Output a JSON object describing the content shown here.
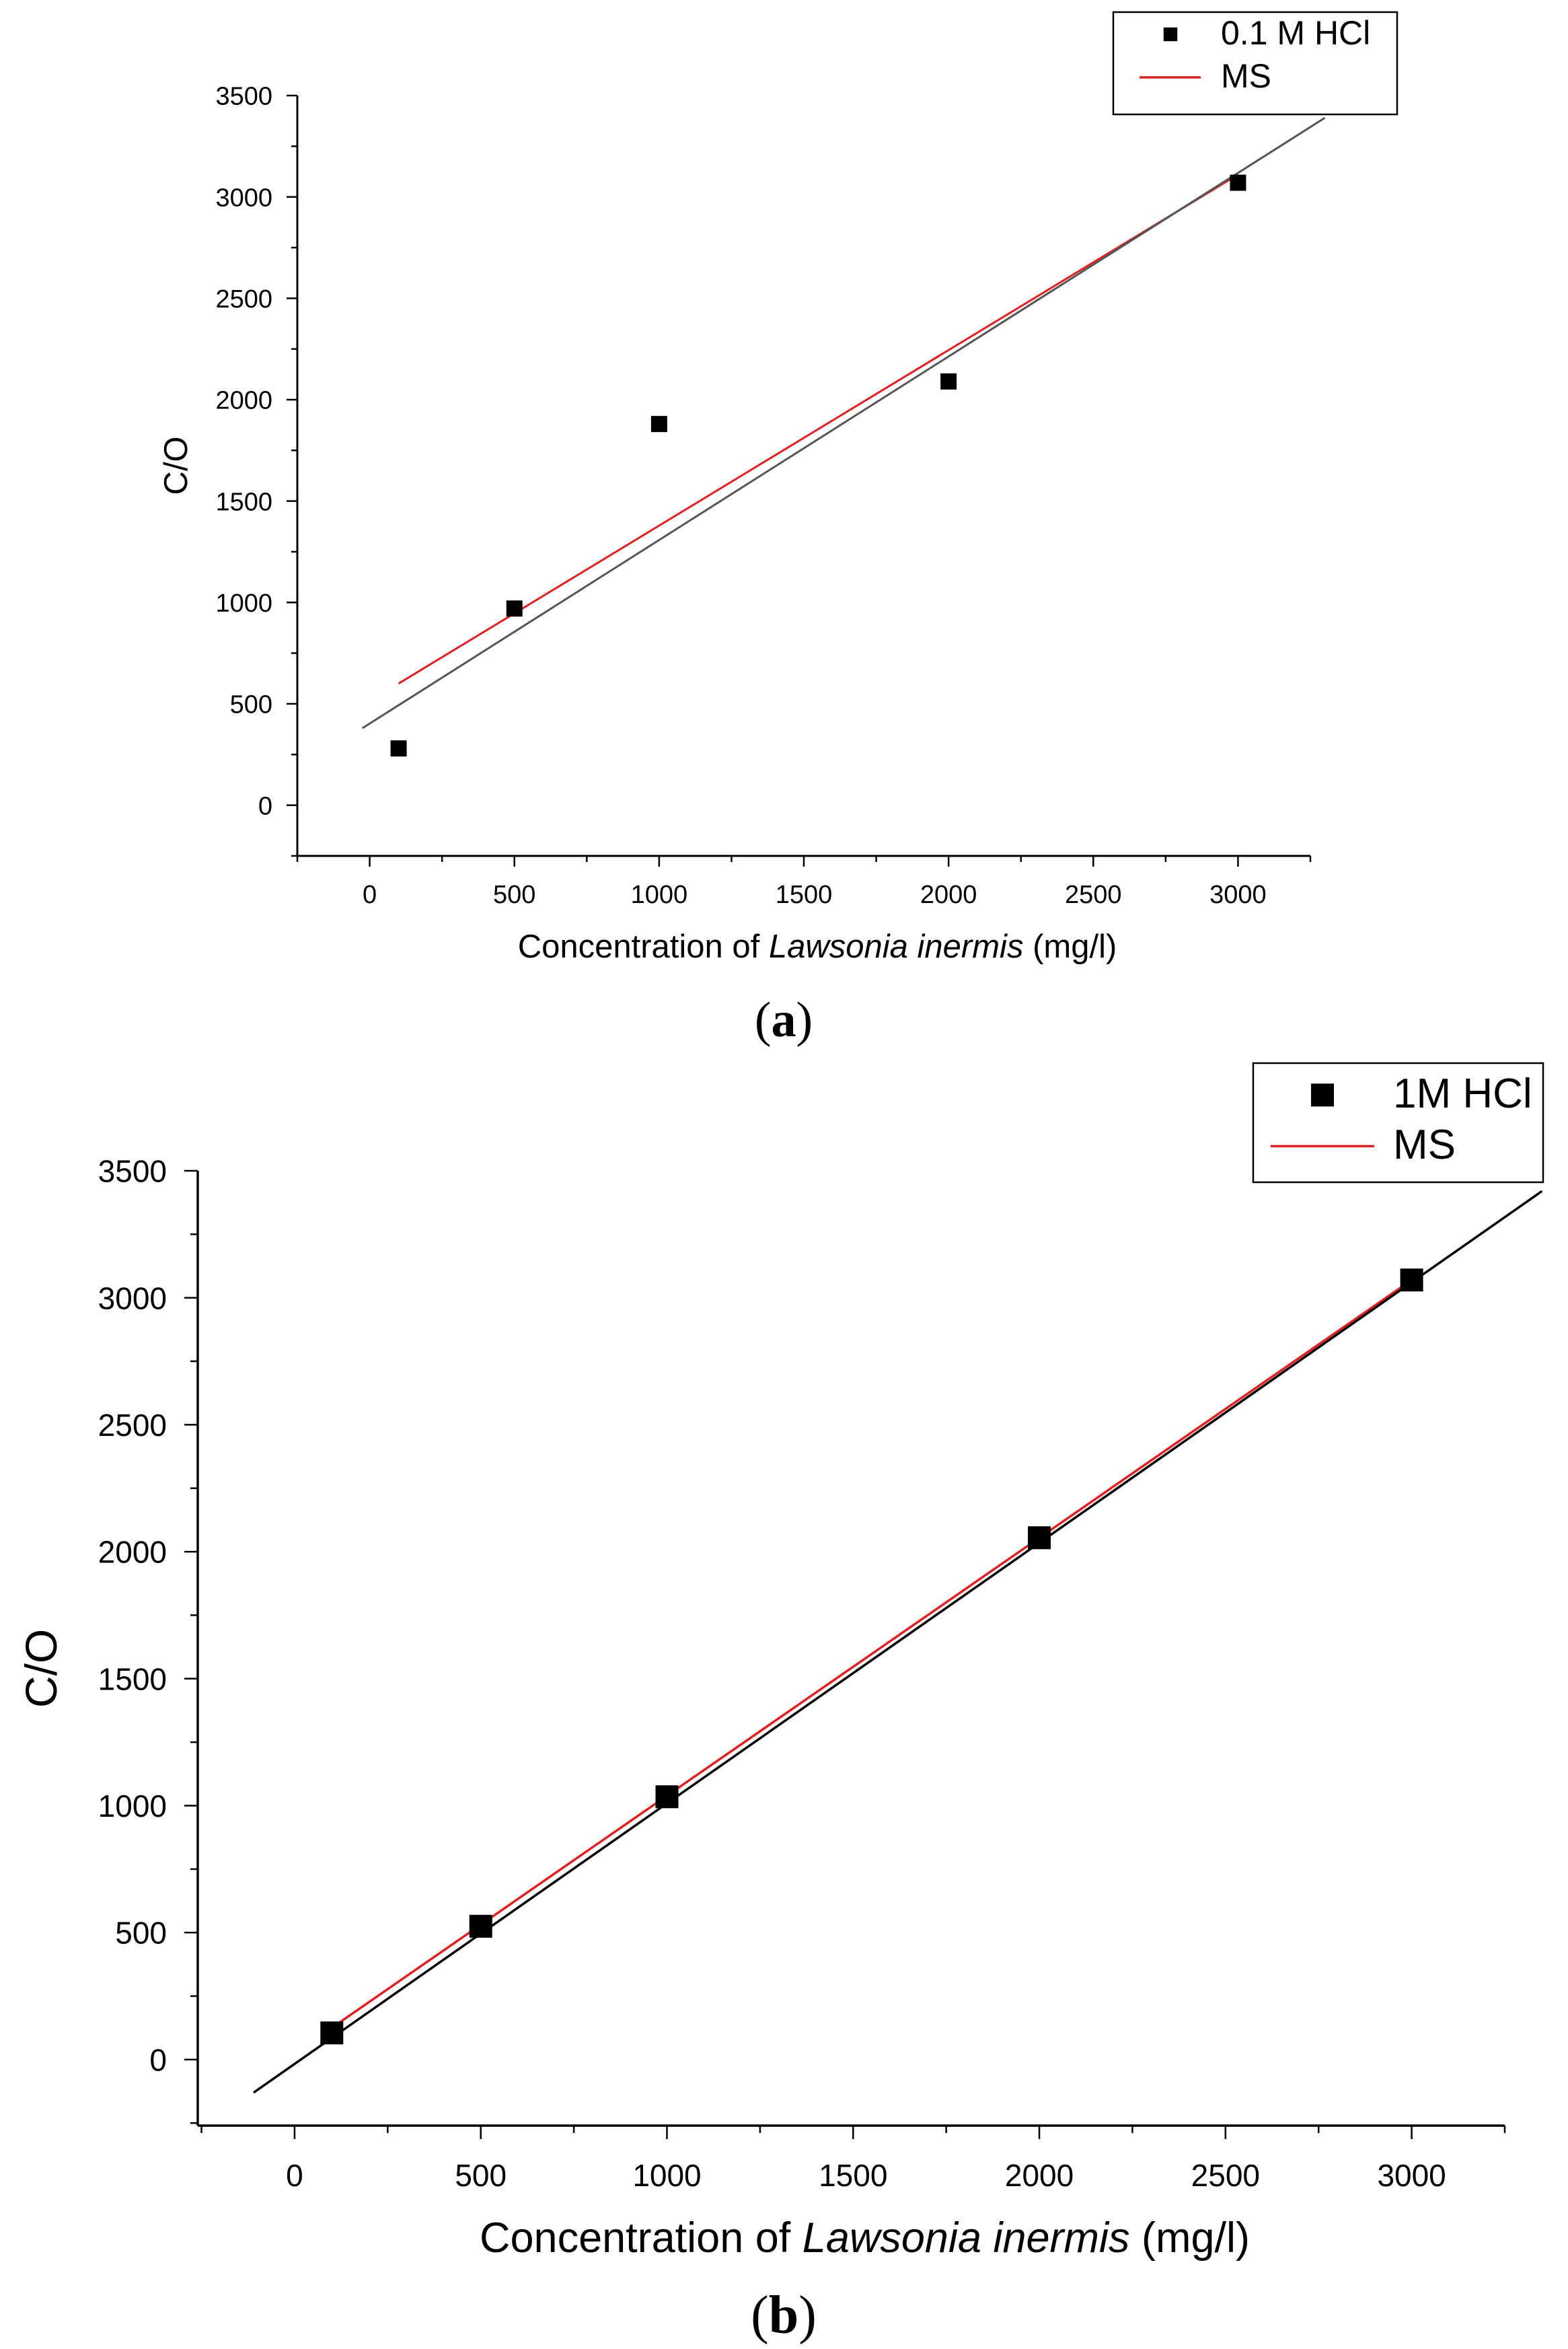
{
  "chart_data": [
    {
      "type": "scatter",
      "panel_label": "a",
      "title": "",
      "xlabel": {
        "prefix": "Concentration of ",
        "italic": "Lawsonia inermis",
        "suffix": " (mg/l)"
      },
      "ylabel": "C/O",
      "xlim": [
        -250,
        3250
      ],
      "ylim": [
        -250,
        3500
      ],
      "xticks": [
        0,
        500,
        1000,
        1500,
        2000,
        2500,
        3000
      ],
      "yticks": [
        0,
        500,
        1000,
        1500,
        2000,
        2500,
        3000,
        3500
      ],
      "legend": [
        "0.1 M HCl",
        "MS"
      ],
      "legend_position": "top-right",
      "series": [
        {
          "name": "0.1 M HCl",
          "kind": "points",
          "color": "#000000",
          "x": [
            100,
            500,
            1000,
            2000,
            3000
          ],
          "y": [
            280,
            970,
            1880,
            2090,
            3070
          ]
        },
        {
          "name": "MS",
          "kind": "line",
          "color": "#e02020",
          "x": [
            100,
            3000
          ],
          "y": [
            600,
            3110
          ]
        },
        {
          "name": "linear fit",
          "kind": "line",
          "color": "#555555",
          "x": [
            -25,
            3300
          ],
          "y": [
            380,
            3390
          ]
        }
      ]
    },
    {
      "type": "scatter",
      "panel_label": "b",
      "title": "",
      "xlabel": {
        "prefix": "Concentration of ",
        "italic": "Lawsonia inermis",
        "suffix": " (mg/l)"
      },
      "ylabel": "C/O",
      "xlim": [
        -260,
        3250
      ],
      "ylim": [
        -260,
        3500
      ],
      "xticks": [
        0,
        500,
        1000,
        1500,
        2000,
        2500,
        3000
      ],
      "yticks": [
        0,
        500,
        1000,
        1500,
        2000,
        2500,
        3000,
        3500
      ],
      "legend": [
        "1M HCl",
        "MS"
      ],
      "legend_position": "top-right",
      "series": [
        {
          "name": "1M HCl",
          "kind": "points",
          "color": "#000000",
          "x": [
            100,
            500,
            1000,
            2000,
            3000
          ],
          "y": [
            105,
            525,
            1035,
            2055,
            3070
          ]
        },
        {
          "name": "MS",
          "kind": "line",
          "color": "#e02020",
          "x": [
            100,
            3000
          ],
          "y": [
            125,
            3070
          ]
        },
        {
          "name": "linear fit",
          "kind": "line",
          "color": "#000000",
          "x": [
            -110,
            3350
          ],
          "y": [
            -130,
            3420
          ]
        }
      ]
    }
  ]
}
